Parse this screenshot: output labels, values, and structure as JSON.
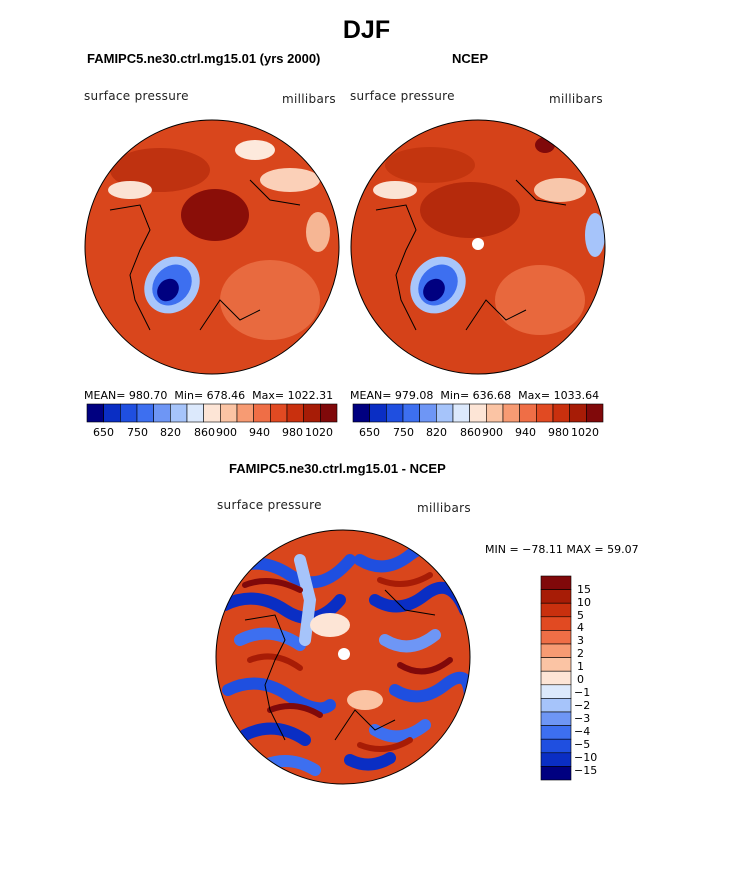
{
  "season_title": "DJF",
  "colors": {
    "abs_scale": [
      "#000080",
      "#0a2ec4",
      "#1f4fe0",
      "#3d6ff0",
      "#6e96f5",
      "#a6c4fa",
      "#dce9fc",
      "#fde5d6",
      "#fbc4a4",
      "#f79b73",
      "#ef6e46",
      "#e14a22",
      "#c9300e",
      "#a71c06",
      "#80090a"
    ],
    "diff_scale": [
      "#000080",
      "#0a2ec4",
      "#1f4fe0",
      "#3d6ff0",
      "#6e96f5",
      "#a6c4fa",
      "#dce9fc",
      "#fde5d6",
      "#fbc4a4",
      "#f79b73",
      "#ef6e46",
      "#e14a22",
      "#c9300e",
      "#a71c06",
      "#80090a"
    ]
  },
  "panels": [
    {
      "title": "FAMIPC5.ne30.ctrl.mg15.01 (yrs 2000)",
      "variable": "surface pressure",
      "units": "millibars",
      "stats": {
        "mean_label": "MEAN=",
        "mean": "980.70",
        "min_label": "Min=",
        "min": "678.46",
        "max_label": "Max=",
        "max": "1022.31"
      }
    },
    {
      "title": "NCEP",
      "variable": "surface pressure",
      "units": "millibars",
      "stats": {
        "mean_label": "MEAN=",
        "mean": "979.08",
        "min_label": "Min=",
        "min": "636.68",
        "max_label": "Max=",
        "max": "1033.64"
      }
    }
  ],
  "abs_colorbar_ticks": [
    "650",
    "750",
    "820",
    "860",
    "900",
    "940",
    "980",
    "1020"
  ],
  "diff_panel": {
    "title": "FAMIPC5.ne30.ctrl.mg15.01 - NCEP",
    "variable": "surface pressure",
    "units": "millibars",
    "min_max_text": "MIN = −78.11  MAX =  59.07"
  },
  "diff_colorbar_labels": [
    "15",
    "10",
    "5",
    "4",
    "3",
    "2",
    "1",
    "0",
    "−1",
    "−2",
    "−3",
    "−4",
    "−5",
    "−10",
    "−15"
  ],
  "chart_data": [
    {
      "type": "heatmap",
      "title": "FAMIPC5.ne30.ctrl.mg15.01 (yrs 2000)",
      "projection": "north polar stereographic",
      "variable": "surface pressure",
      "units": "millibars",
      "mean": 980.7,
      "min": 678.46,
      "max": 1022.31,
      "colorbar_levels": [
        650,
        700,
        750,
        800,
        820,
        840,
        860,
        880,
        900,
        920,
        940,
        960,
        980,
        1000,
        1020
      ]
    },
    {
      "type": "heatmap",
      "title": "NCEP",
      "projection": "north polar stereographic",
      "variable": "surface pressure",
      "units": "millibars",
      "mean": 979.08,
      "min": 636.68,
      "max": 1033.64,
      "colorbar_levels": [
        650,
        700,
        750,
        800,
        820,
        840,
        860,
        880,
        900,
        920,
        940,
        960,
        980,
        1000,
        1020
      ]
    },
    {
      "type": "heatmap",
      "title": "FAMIPC5.ne30.ctrl.mg15.01 - NCEP",
      "projection": "north polar stereographic",
      "variable": "surface pressure",
      "units": "millibars",
      "min": -78.11,
      "max": 59.07,
      "colorbar_levels": [
        15,
        10,
        5,
        4,
        3,
        2,
        1,
        0,
        -1,
        -2,
        -3,
        -4,
        -5,
        -10,
        -15
      ]
    }
  ]
}
